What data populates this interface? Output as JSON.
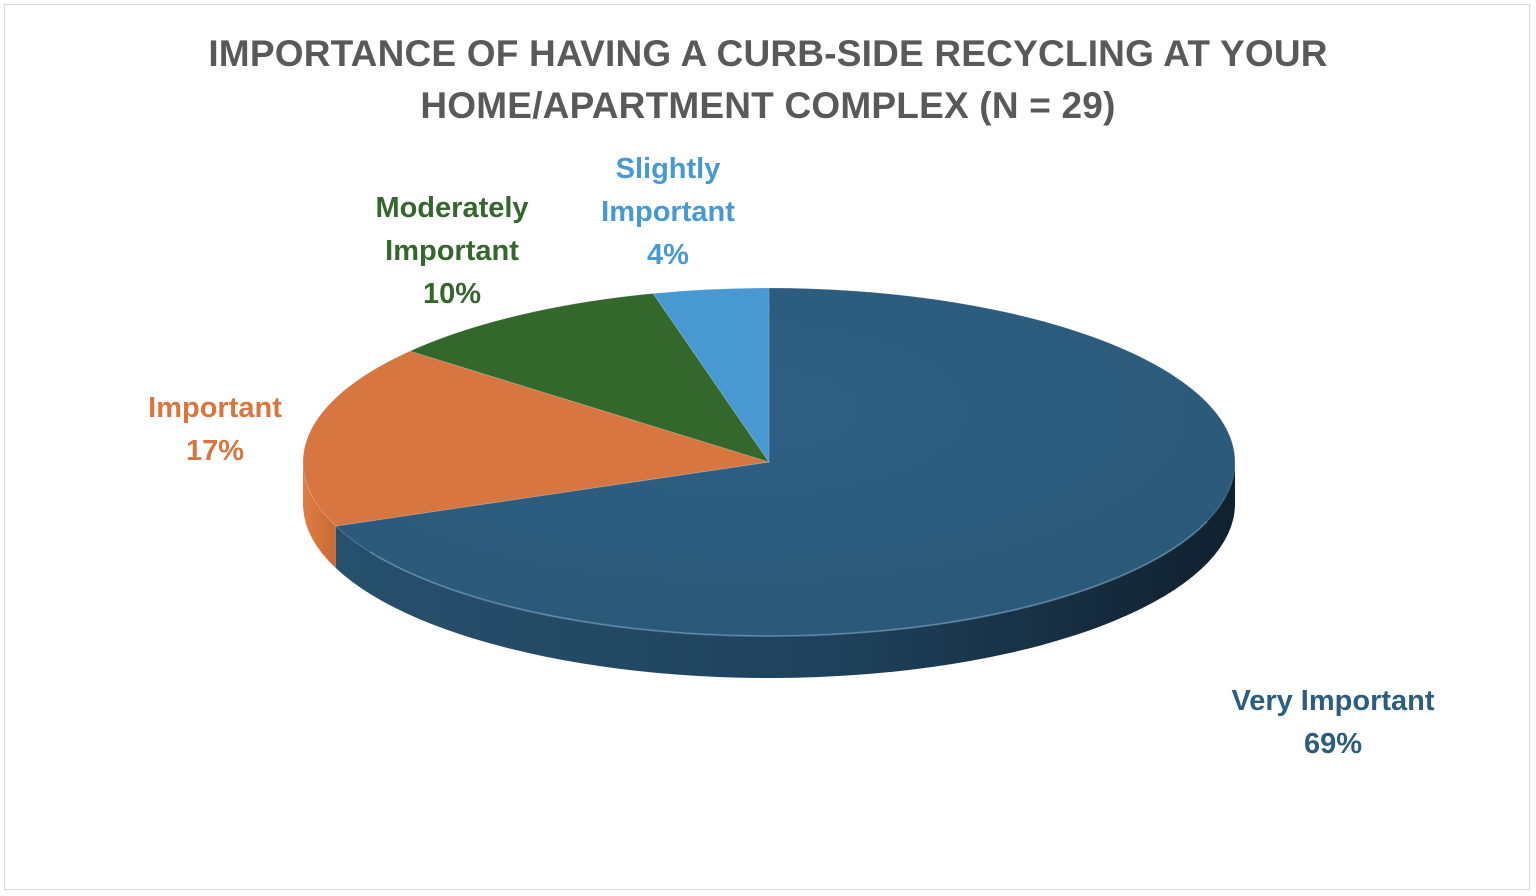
{
  "chart_data": {
    "type": "pie",
    "title_lines": [
      "IMPORTANCE OF HAVING A CURB-SIDE RECYCLING AT YOUR",
      "HOME/APARTMENT COMPLEX (N = 29)"
    ],
    "slices": [
      {
        "label": "Very Important",
        "value": 69,
        "display": "69%",
        "color": "#2c5d7e"
      },
      {
        "label": "Important",
        "value": 17,
        "display": "17%",
        "color": "#d77640"
      },
      {
        "label": "Moderately Important",
        "label_lines": [
          "Moderately",
          "Important"
        ],
        "value": 10,
        "display": "10%",
        "color": "#33672c"
      },
      {
        "label": "Slightly Important",
        "label_lines": [
          "Slightly",
          "Important"
        ],
        "value": 4,
        "display": "4%",
        "color": "#4899d2"
      }
    ],
    "legend": "none",
    "style": "3d-pie"
  }
}
